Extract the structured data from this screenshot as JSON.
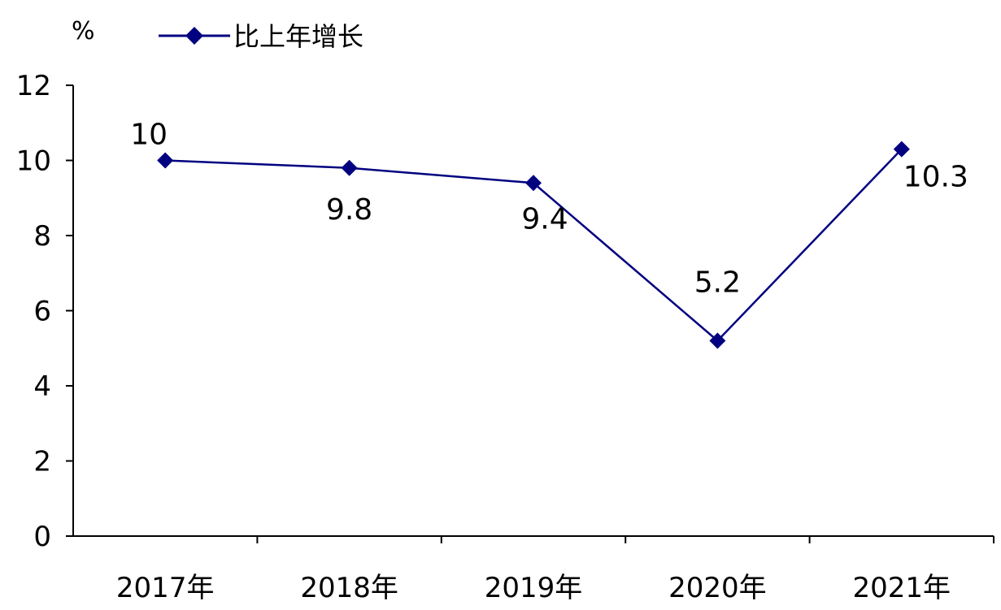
{
  "chart_data": {
    "type": "line",
    "categories": [
      "2017年",
      "2018年",
      "2019年",
      "2020年",
      "2021年"
    ],
    "series": [
      {
        "name": "比上年增长",
        "values": [
          10,
          9.8,
          9.4,
          5.2,
          10.3
        ],
        "data_labels": [
          "10",
          "9.8",
          "9.4",
          "5.2",
          "10.3"
        ],
        "color": "#000080",
        "marker": "diamond"
      }
    ],
    "y_unit": "%",
    "ylim": [
      0,
      12
    ],
    "y_ticks": [
      0,
      2,
      4,
      6,
      8,
      10,
      12
    ],
    "grid": false,
    "legend_position": "top-left"
  }
}
